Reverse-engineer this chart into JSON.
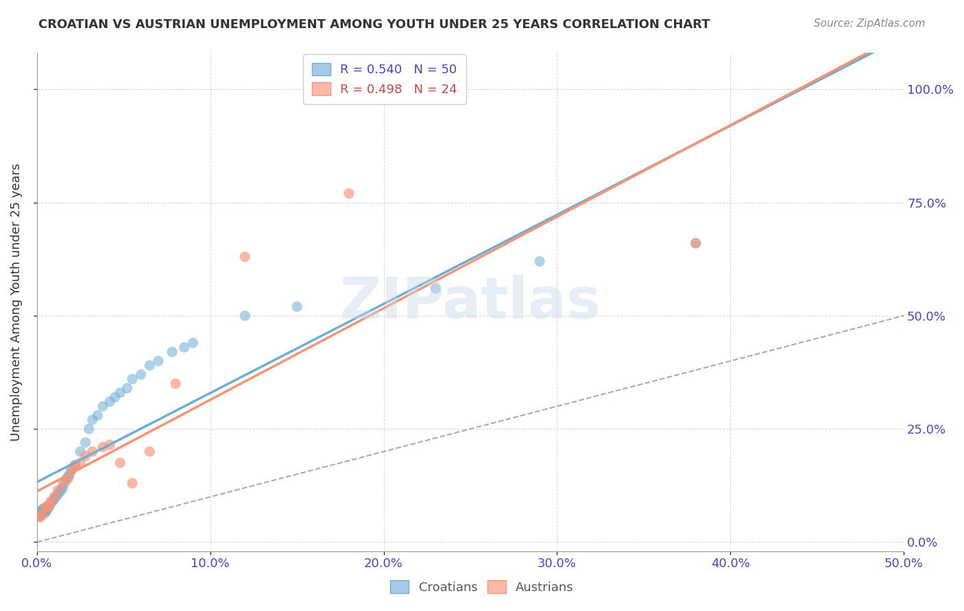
{
  "title": "CROATIAN VS AUSTRIAN UNEMPLOYMENT AMONG YOUTH UNDER 25 YEARS CORRELATION CHART",
  "source": "Source: ZipAtlas.com",
  "xlabel_ticks": [
    "0.0%",
    "10.0%",
    "20.0%",
    "30.0%",
    "40.0%",
    "50.0%"
  ],
  "ylabel_ticks": [
    "0.0%",
    "25.0%",
    "50.0%",
    "75.0%",
    "100.0%"
  ],
  "ylabel_label": "Unemployment Among Youth under 25 years",
  "xlim": [
    0.0,
    0.5
  ],
  "ylim": [
    -0.02,
    1.08
  ],
  "croatian_color": "#6baed6",
  "austrian_color": "#fc9272",
  "legend_box_croatian": "#a8c8e8",
  "legend_box_austrian": "#fcb8a8",
  "r_croatian": 0.54,
  "n_croatian": 50,
  "r_austrian": 0.498,
  "n_austrian": 24,
  "watermark": "ZIPatlas",
  "croatians_x": [
    0.001,
    0.002,
    0.002,
    0.003,
    0.003,
    0.004,
    0.004,
    0.005,
    0.005,
    0.005,
    0.006,
    0.006,
    0.007,
    0.007,
    0.008,
    0.009,
    0.01,
    0.011,
    0.012,
    0.013,
    0.014,
    0.015,
    0.016,
    0.017,
    0.018,
    0.019,
    0.02,
    0.022,
    0.025,
    0.028,
    0.03,
    0.032,
    0.035,
    0.038,
    0.042,
    0.045,
    0.048,
    0.052,
    0.055,
    0.06,
    0.065,
    0.07,
    0.078,
    0.085,
    0.09,
    0.12,
    0.15,
    0.23,
    0.29,
    0.38
  ],
  "croatians_y": [
    0.055,
    0.06,
    0.065,
    0.07,
    0.072,
    0.068,
    0.075,
    0.065,
    0.07,
    0.068,
    0.072,
    0.075,
    0.08,
    0.078,
    0.085,
    0.09,
    0.095,
    0.1,
    0.105,
    0.11,
    0.115,
    0.12,
    0.13,
    0.14,
    0.145,
    0.15,
    0.16,
    0.17,
    0.2,
    0.22,
    0.25,
    0.27,
    0.28,
    0.3,
    0.31,
    0.32,
    0.33,
    0.34,
    0.36,
    0.37,
    0.39,
    0.4,
    0.42,
    0.43,
    0.44,
    0.5,
    0.52,
    0.56,
    0.62,
    0.66
  ],
  "austrians_x": [
    0.002,
    0.003,
    0.005,
    0.006,
    0.007,
    0.008,
    0.01,
    0.012,
    0.015,
    0.018,
    0.02,
    0.022,
    0.025,
    0.028,
    0.032,
    0.038,
    0.042,
    0.048,
    0.055,
    0.065,
    0.08,
    0.12,
    0.18,
    0.38
  ],
  "austrians_y": [
    0.055,
    0.06,
    0.075,
    0.08,
    0.08,
    0.09,
    0.1,
    0.115,
    0.13,
    0.14,
    0.16,
    0.17,
    0.175,
    0.19,
    0.2,
    0.21,
    0.215,
    0.175,
    0.13,
    0.2,
    0.35,
    0.63,
    0.77,
    0.66
  ]
}
